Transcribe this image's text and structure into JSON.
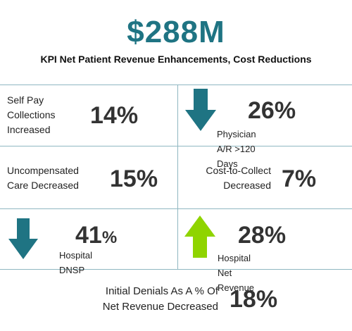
{
  "header": {
    "amount": "$288M",
    "subtitle": "KPI Net Patient Revenue Enhancements, Cost Reductions"
  },
  "colors": {
    "teal": "#1f7483",
    "green": "#8fd400",
    "grid": "#8fb7c1"
  },
  "kpis": [
    {
      "label_lines": [
        "Self Pay",
        "Collections",
        "Increased"
      ],
      "value": "14%"
    },
    {
      "icon": "arrow-down-icon",
      "value": "26%",
      "label": "Physician A/R >120 Days"
    },
    {
      "label_lines": [
        "Uncompensated",
        "Care Decreased"
      ],
      "value": "15%"
    },
    {
      "label_lines": [
        "Cost-to-Collect",
        "Decreased"
      ],
      "value": "7%"
    },
    {
      "icon": "arrow-down-icon",
      "value_number": "41",
      "value_unit": "%",
      "label": "Hospital DNSP"
    },
    {
      "icon": "arrow-up-icon",
      "value": "28%",
      "label": "Hospital Net Revenue"
    }
  ],
  "footer": {
    "label_lines": [
      "Initial Denials As A % Of",
      "Net Revenue Decreased"
    ],
    "value": "18%"
  }
}
